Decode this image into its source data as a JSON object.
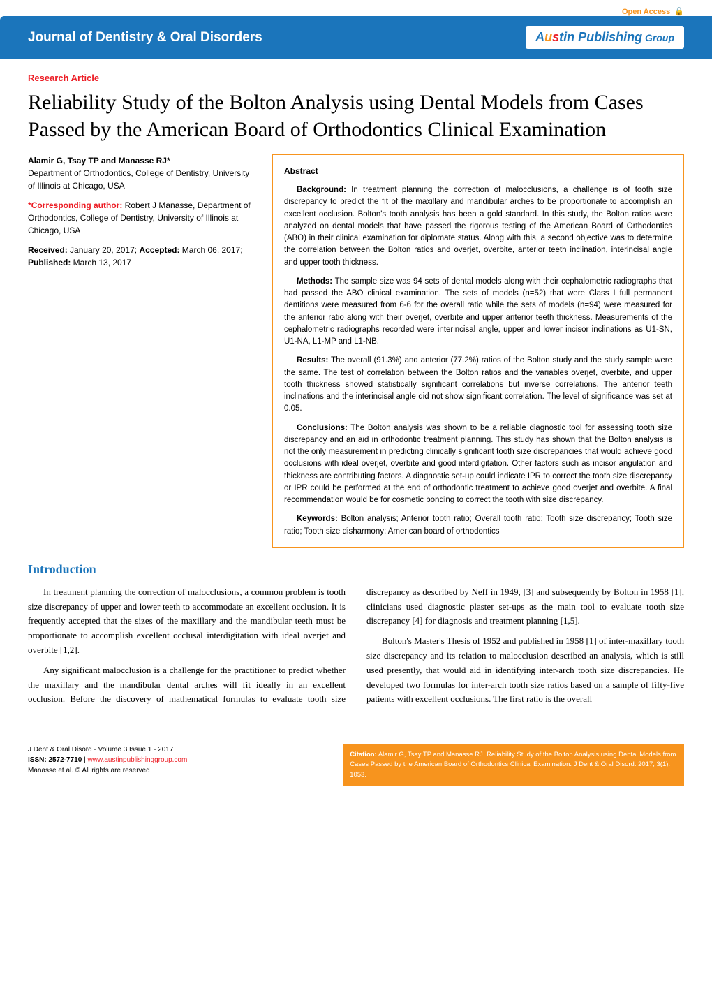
{
  "open_access": "Open Access",
  "header": {
    "journal": "Journal of Dentistry & Oral Disorders",
    "publisher_parts": {
      "a": "A",
      "u": "u",
      "s": "s",
      "rest": "tin Publishing",
      "group": " Group"
    }
  },
  "article_type": "Research Article",
  "title": "Reliability Study of the Bolton Analysis using Dental Models from Cases Passed by the American Board of Orthodontics Clinical Examination",
  "meta": {
    "authors": "Alamir G, Tsay TP and Manasse RJ*",
    "affiliation": "Department of Orthodontics, College of Dentistry, University of Illinois at Chicago, USA",
    "corresponding_label": "*Corresponding author:",
    "corresponding": " Robert J Manasse, Department of Orthodontics, College of Dentistry, University of Illinois at Chicago, USA",
    "received_label": "Received:",
    "received": " January 20, 2017; ",
    "accepted_label": "Accepted:",
    "accepted": " March 06, 2017; ",
    "published_label": "Published:",
    "published": " March 13, 2017"
  },
  "abstract": {
    "heading": "Abstract",
    "background_label": "Background:",
    "background": " In treatment planning the correction of malocclusions, a challenge is of tooth size discrepancy to predict the fit of the maxillary and mandibular arches to be proportionate to accomplish an excellent occlusion. Bolton's tooth analysis has been a gold standard. In this study, the Bolton ratios were analyzed on dental models that have passed the rigorous testing of the American Board of Orthodontics (ABO) in their clinical examination for diplomate status. Along with this, a second objective was to determine the correlation between the Bolton ratios and overjet, overbite, anterior teeth inclination, interincisal angle and upper tooth thickness.",
    "methods_label": "Methods:",
    "methods": " The sample size was 94 sets of dental models along with their cephalometric radiographs that had passed the ABO clinical examination. The sets of models (n=52) that were Class I full permanent dentitions were measured from 6-6 for the overall ratio while the sets of models (n=94) were measured for the anterior ratio along with their overjet, overbite and upper anterior teeth thickness. Measurements of the cephalometric radiographs recorded were interincisal angle, upper and lower incisor inclinations as U1-SN, U1-NA, L1-MP and L1-NB.",
    "results_label": "Results:",
    "results": " The overall (91.3%) and anterior (77.2%) ratios of the Bolton study and the study sample were the same. The test of correlation between the Bolton ratios and the variables overjet, overbite, and upper tooth thickness showed statistically significant correlations but inverse correlations. The anterior teeth inclinations and the interincisal angle did not show significant correlation. The level of significance was set at 0.05.",
    "conclusions_label": "Conclusions:",
    "conclusions": " The Bolton analysis was shown to be a reliable diagnostic tool for assessing tooth size discrepancy and an aid in orthodontic treatment planning. This study has shown that the Bolton analysis is not the only measurement in predicting clinically significant tooth size discrepancies that would achieve good occlusions with ideal overjet, overbite and good interdigitation. Other factors such as incisor angulation and thickness are contributing factors. A diagnostic set-up could indicate IPR to correct the tooth size discrepancy or IPR could be performed at the end of orthodontic treatment to achieve good overjet and overbite. A final recommendation would be for cosmetic bonding to correct the tooth with size discrepancy.",
    "keywords_label": "Keywords:",
    "keywords": " Bolton analysis; Anterior tooth ratio; Overall tooth ratio; Tooth size discrepancy; Tooth size ratio; Tooth size disharmony; American board of orthodontics"
  },
  "introduction": {
    "heading": "Introduction",
    "p1": "In treatment planning the correction of malocclusions, a common problem is tooth size discrepancy of upper and lower teeth to accommodate an excellent occlusion. It is frequently accepted that the sizes of the maxillary and the mandibular teeth must be proportionate to accomplish excellent occlusal interdigitation with ideal overjet and overbite [1,2].",
    "p2": "Any significant malocclusion is a challenge for the practitioner to predict whether the maxillary and the mandibular dental arches will fit ideally in an excellent occlusion. Before the discovery of mathematical formulas to evaluate tooth size discrepancy as described by Neff in 1949, [3] and subsequently by Bolton in 1958 [1], clinicians used diagnostic plaster set-ups as the main tool to evaluate tooth size discrepancy [4] for diagnosis and treatment planning [1,5].",
    "p3": "Bolton's Master's Thesis of 1952 and published in 1958 [1] of inter-maxillary tooth size discrepancy and its relation to malocclusion described an analysis, which is still used presently, that would aid in identifying inter-arch tooth size discrepancies. He developed two formulas for inter-arch tooth size ratios based on a sample of fifty-five patients with excellent occlusions. The first ratio is the overall"
  },
  "footer": {
    "left_line1": "J Dent & Oral Disord - Volume 3 Issue 1 - 2017",
    "left_issn_label": "ISSN: 2572-7710",
    "left_link": "www.austinpublishinggroup.com",
    "left_line3": "Manasse et al. © All rights are reserved",
    "citation_label": "Citation:",
    "citation": " Alamir G, Tsay TP and Manasse RJ. Reliability Study of the Bolton Analysis using Dental Models from Cases Passed by the American Board of Orthodontics Clinical Examination. J Dent & Oral Disord. 2017; 3(1): 1053."
  },
  "colors": {
    "blue": "#1b75bb",
    "orange": "#f7941e",
    "red": "#ec1c24"
  }
}
